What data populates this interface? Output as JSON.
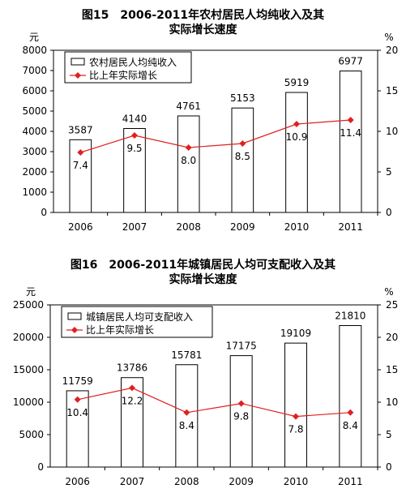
{
  "chart_data": [
    {
      "type": "bar",
      "title_line1": "图15　2006-2011年农村居民人均纯收入及其",
      "title_line2": "实际增长速度",
      "ylabel": "元",
      "y2label": "%",
      "categories": [
        "2006",
        "2007",
        "2008",
        "2009",
        "2010",
        "2011"
      ],
      "series": [
        {
          "name": "农村居民人均纯收入",
          "type": "bar",
          "axis": "left",
          "values": [
            3587,
            4140,
            4761,
            5153,
            5919,
            6977
          ]
        },
        {
          "name": "比上年实际增长",
          "type": "line",
          "axis": "right",
          "color": "#e02020",
          "values": [
            7.4,
            9.5,
            8.0,
            8.5,
            10.9,
            11.4
          ]
        }
      ],
      "bar_labels": [
        "3587",
        "4140",
        "4761",
        "5153",
        "5919",
        "6977"
      ],
      "line_labels": [
        "7.4",
        "9.5",
        "8.0",
        "8.5",
        "10.9",
        "11.4"
      ],
      "ylim": [
        0,
        8000
      ],
      "yticks": [
        0,
        1000,
        2000,
        3000,
        4000,
        5000,
        6000,
        7000,
        8000
      ],
      "y2lim": [
        0,
        20
      ],
      "y2ticks": [
        0,
        5,
        10,
        15,
        20
      ],
      "legend_position": "top-left",
      "grid": false
    },
    {
      "type": "bar",
      "title_line1": "图16　2006-2011年城镇居民人均可支配收入及其",
      "title_line2": "实际增长速度",
      "ylabel": "元",
      "y2label": "%",
      "categories": [
        "2006",
        "2007",
        "2008",
        "2009",
        "2010",
        "2011"
      ],
      "series": [
        {
          "name": "城镇居民人均可支配收入",
          "type": "bar",
          "axis": "left",
          "values": [
            11759,
            13786,
            15781,
            17175,
            19109,
            21810
          ]
        },
        {
          "name": "比上年实际增长",
          "type": "line",
          "axis": "right",
          "color": "#e02020",
          "values": [
            10.4,
            12.2,
            8.4,
            9.8,
            7.8,
            8.4
          ]
        }
      ],
      "bar_labels": [
        "11759",
        "13786",
        "15781",
        "17175",
        "19109",
        "21810"
      ],
      "line_labels": [
        "10.4",
        "12.2",
        "8.4",
        "9.8",
        "7.8",
        "8.4"
      ],
      "ylim": [
        0,
        25000
      ],
      "yticks": [
        0,
        5000,
        10000,
        15000,
        20000,
        25000
      ],
      "y2lim": [
        0,
        25
      ],
      "y2ticks": [
        0,
        5,
        10,
        15,
        20,
        25
      ],
      "legend_position": "top-left",
      "grid": false
    }
  ]
}
